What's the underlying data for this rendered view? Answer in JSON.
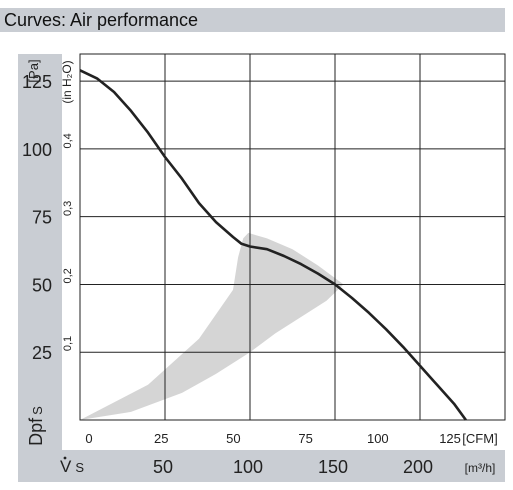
{
  "title": "Curves: Air performance",
  "chart_data": {
    "type": "line",
    "grid": true,
    "y_axis_pa": {
      "unit_label": "[Pa]",
      "ticks": [
        25,
        50,
        75,
        100,
        125
      ],
      "symbol": "Dpf",
      "symbol_sub": "S",
      "range": [
        0,
        135
      ]
    },
    "y_axis_inh2o": {
      "unit_label": "(in H₂O)",
      "ticks": [
        "0,1",
        "0,2",
        "0,3",
        "0,4"
      ],
      "tick_values": [
        0.1,
        0.2,
        0.3,
        0.4
      ]
    },
    "x_axis_cfm": {
      "unit_label": "[CFM]",
      "ticks": [
        0,
        25,
        50,
        75,
        100,
        125
      ]
    },
    "x_axis_m3h": {
      "unit_label": "[m³/h]",
      "ticks": [
        50,
        100,
        150,
        200
      ],
      "symbol": "V",
      "symbol_sub": "S",
      "range": [
        0,
        250
      ]
    },
    "series": [
      {
        "values": [
          [
            0,
            129
          ],
          [
            10,
            126
          ],
          [
            20,
            121
          ],
          [
            30,
            114
          ],
          [
            40,
            106
          ],
          [
            50,
            97
          ],
          [
            60,
            89
          ],
          [
            70,
            80
          ],
          [
            80,
            73
          ],
          [
            90,
            67.5
          ],
          [
            95,
            65
          ],
          [
            100,
            64
          ],
          [
            110,
            63
          ],
          [
            120,
            60.5
          ],
          [
            130,
            57.5
          ],
          [
            140,
            54
          ],
          [
            150,
            50
          ],
          [
            160,
            45
          ],
          [
            170,
            39.5
          ],
          [
            180,
            33.5
          ],
          [
            190,
            27
          ],
          [
            200,
            20
          ],
          [
            210,
            13
          ],
          [
            220,
            6
          ],
          [
            227,
            0
          ]
        ]
      }
    ],
    "shaded_region": {
      "color": "#d5d5d5",
      "outer": [
        [
          0,
          0
        ],
        [
          40,
          13
        ],
        [
          70,
          30
        ],
        [
          90,
          48
        ],
        [
          93,
          60
        ],
        [
          96,
          67
        ],
        [
          99,
          69
        ],
        [
          110,
          67
        ],
        [
          125,
          63
        ],
        [
          140,
          57
        ],
        [
          155,
          50
        ]
      ],
      "inner": [
        [
          155,
          50
        ],
        [
          145,
          44
        ],
        [
          130,
          38
        ],
        [
          115,
          32
        ],
        [
          100,
          25
        ],
        [
          80,
          17
        ],
        [
          60,
          10
        ],
        [
          30,
          3
        ],
        [
          0,
          0
        ]
      ]
    }
  }
}
